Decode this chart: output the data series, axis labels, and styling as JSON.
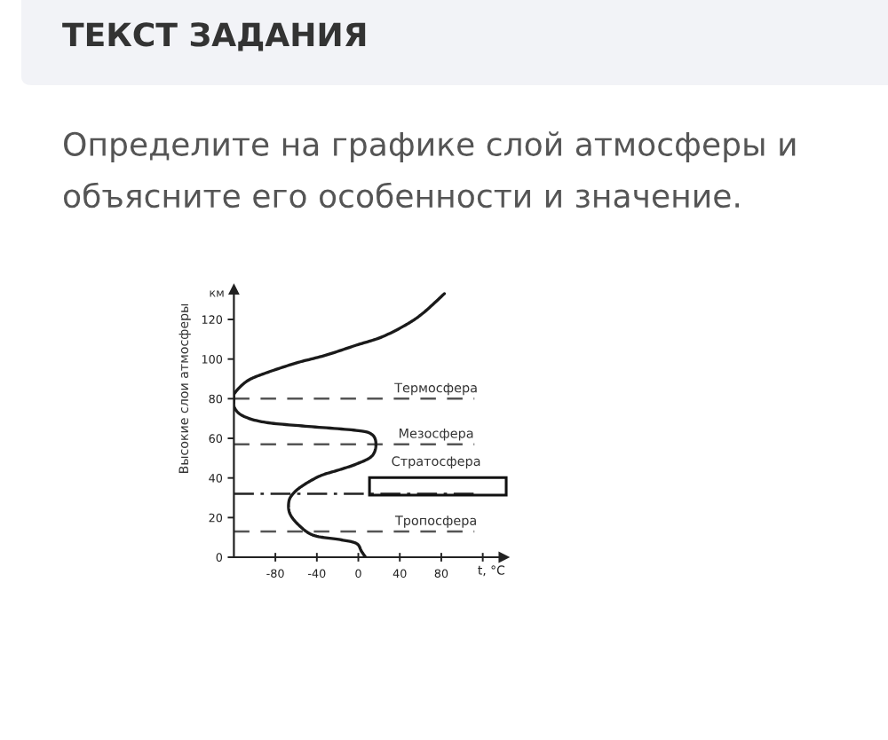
{
  "chart_data": {
    "type": "line",
    "title": "ТЕКСТ ЗАДАНИЯ",
    "subtitle": "Определите на графике слой атмосферы и объясните его особенности и значение.",
    "xlabel": "t, °C",
    "ylabel": "Высокие слои атмосферы",
    "annotations": [
      "км",
      "Стратосфера"
    ],
    "series": [
      {
        "color": "#1a1a1a",
        "x": [
          7,
          3,
          -2,
          -19,
          -43,
          -57,
          -66,
          -67,
          -63,
          -54,
          -37,
          -19,
          -2,
          13,
          17,
          13,
          -2,
          -48,
          -89,
          -110,
          -119,
          -120,
          -119,
          -107,
          -89,
          -60,
          -31,
          -2,
          22,
          45,
          62,
          83
        ],
        "values": [
          0,
          3,
          7,
          9,
          11,
          16,
          22,
          28,
          32,
          36,
          41,
          44,
          47,
          51,
          57,
          62,
          64,
          66,
          68,
          71,
          75,
          80,
          83,
          89,
          93,
          98,
          102,
          107,
          111,
          117,
          123,
          133
        ]
      }
    ],
    "xlim": [
      -120,
      140
    ],
    "ylim": [
      0,
      135
    ],
    "xticks": [
      -80,
      -40,
      0,
      40,
      80,
      {
        "value": 120,
        "label": null
      }
    ],
    "yticks": [
      0,
      20,
      40,
      60,
      80,
      100,
      120
    ],
    "ref_lines": [
      {
        "axis": "y",
        "value": 13,
        "line_style": "dashed",
        "color": "#555555",
        "label": "Тропосфера"
      },
      {
        "axis": "y",
        "value": 32,
        "line_style": "dashdot",
        "color": "#222222"
      },
      {
        "axis": "y",
        "value": 57,
        "line_style": "dashed",
        "color": "#555555",
        "label": "Мезосфера"
      },
      {
        "axis": "y",
        "value": 80,
        "line_style": "dashed",
        "color": "#555555",
        "label": "Термосфера"
      }
    ],
    "line_style": "solid",
    "marker": "none"
  }
}
